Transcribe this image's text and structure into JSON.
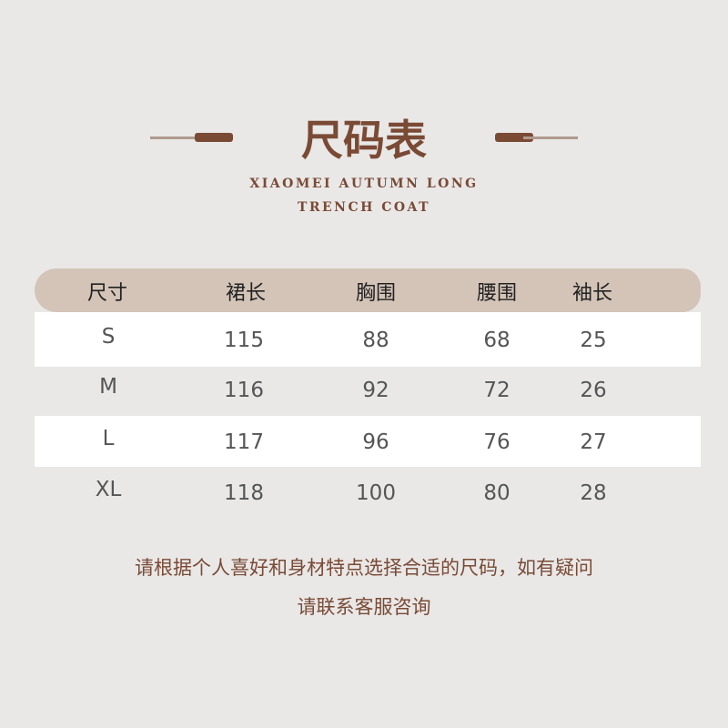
{
  "title": "尺码表",
  "subtitle": [
    "XIAOMEI AUTUMN LONG",
    "TRENCH COAT"
  ],
  "colors": {
    "background": "#e9e8e7",
    "accent": "#7a4a35",
    "header_bar": "#d4c4b8"
  },
  "table": {
    "headers": [
      "尺寸",
      "裙长",
      "胸围",
      "腰围",
      "袖长"
    ],
    "rows": [
      [
        "S",
        "115",
        "88",
        "68",
        "25"
      ],
      [
        "M",
        "116",
        "92",
        "72",
        "26"
      ],
      [
        "L",
        "117",
        "96",
        "76",
        "27"
      ],
      [
        "XL",
        "118",
        "100",
        "80",
        "28"
      ]
    ]
  },
  "note": [
    "请根据个人喜好和身材特点选择合适的尺码，如有疑问",
    "请联系客服咨询"
  ]
}
